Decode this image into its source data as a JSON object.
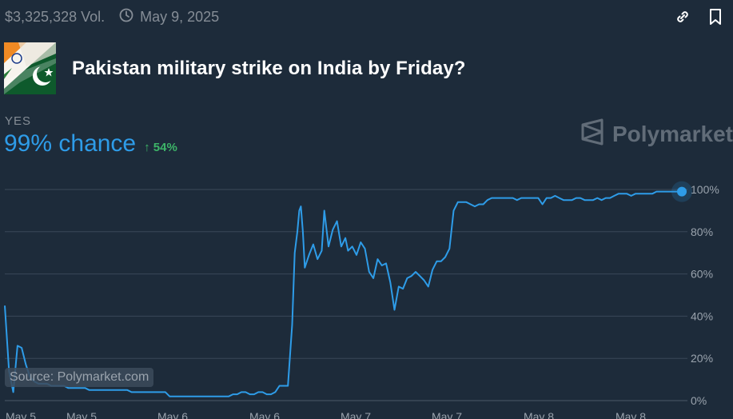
{
  "header": {
    "volume": "$3,325,328 Vol.",
    "date": "May 9, 2025",
    "icons": [
      "clock-icon",
      "link-icon",
      "bookmark-icon"
    ]
  },
  "market": {
    "title": "Pakistan military strike on India by Friday?",
    "image": "pakistan-india-flags",
    "outcome_label": "YES",
    "chance": "99% chance",
    "change": "54%",
    "change_icon": "arrow-up-icon"
  },
  "brand": {
    "name": "Polymarket",
    "icon": "polymarket-logo"
  },
  "source": "Source: Polymarket.com",
  "colors": {
    "background": "#1d2b3a",
    "line": "#2e9ce8",
    "positive": "#3db468",
    "muted": "#858d96"
  },
  "chart_data": {
    "type": "line",
    "x_ticks": [
      "May 5",
      "May 5",
      "May 6",
      "May 6",
      "May 7",
      "May 7",
      "May 8",
      "May 8"
    ],
    "y_ticks": [
      "100%",
      "80%",
      "60%",
      "40%",
      "20%",
      "0%"
    ],
    "ylim": [
      0,
      100
    ],
    "grid": true,
    "series": [
      {
        "values": [
          [
            0,
            45
          ],
          [
            1.3,
            14
          ],
          [
            2.6,
            4
          ],
          [
            3.9,
            26
          ],
          [
            5.2,
            25
          ],
          [
            6.5,
            17
          ],
          [
            7.8,
            11
          ],
          [
            9.1,
            9
          ],
          [
            10.4,
            8
          ],
          [
            11.7,
            8
          ],
          [
            13,
            8
          ],
          [
            14.3,
            7
          ],
          [
            15.6,
            7
          ],
          [
            16.9,
            7
          ],
          [
            18.2,
            7
          ],
          [
            19.5,
            6
          ],
          [
            20.8,
            6
          ],
          [
            22.1,
            6
          ],
          [
            23.4,
            6
          ],
          [
            24.7,
            6
          ],
          [
            26,
            5
          ],
          [
            27.3,
            5
          ],
          [
            28.6,
            5
          ],
          [
            29.9,
            5
          ],
          [
            31.2,
            5
          ],
          [
            32.5,
            5
          ],
          [
            33.8,
            5
          ],
          [
            35.1,
            5
          ],
          [
            36.4,
            5
          ],
          [
            37.7,
            5
          ],
          [
            39,
            4
          ],
          [
            40.3,
            4
          ],
          [
            41.6,
            4
          ],
          [
            42.9,
            4
          ],
          [
            44.2,
            4
          ],
          [
            45.5,
            4
          ],
          [
            46.8,
            4
          ],
          [
            48.1,
            4
          ],
          [
            49.4,
            4
          ],
          [
            50.7,
            2
          ],
          [
            52,
            2
          ],
          [
            53.3,
            2
          ],
          [
            54.6,
            2
          ],
          [
            55.9,
            2
          ],
          [
            57.2,
            2
          ],
          [
            58.5,
            2
          ],
          [
            59.8,
            2
          ],
          [
            61.1,
            2
          ],
          [
            62.4,
            2
          ],
          [
            63.7,
            2
          ],
          [
            65,
            2
          ],
          [
            66.3,
            2
          ],
          [
            67.6,
            2
          ],
          [
            68.9,
            2
          ],
          [
            70.2,
            3
          ],
          [
            71.5,
            3
          ],
          [
            72.8,
            4
          ],
          [
            74.1,
            4
          ],
          [
            75.4,
            3
          ],
          [
            76.7,
            3
          ],
          [
            78,
            4
          ],
          [
            79.3,
            4
          ],
          [
            80.6,
            3
          ],
          [
            81.9,
            3
          ],
          [
            83.2,
            4
          ],
          [
            84.5,
            7
          ],
          [
            85.8,
            7
          ],
          [
            87.1,
            7
          ],
          [
            88.4,
            36
          ],
          [
            89.2,
            70
          ],
          [
            90,
            80
          ],
          [
            90.6,
            90
          ],
          [
            91.1,
            92
          ],
          [
            91.7,
            80
          ],
          [
            92.3,
            63
          ],
          [
            93.6,
            69
          ],
          [
            94.9,
            74
          ],
          [
            96.2,
            67
          ],
          [
            97.5,
            71
          ],
          [
            98.3,
            90
          ],
          [
            99.6,
            73
          ],
          [
            100.9,
            81
          ],
          [
            102.2,
            85
          ],
          [
            103.5,
            73
          ],
          [
            104.8,
            77
          ],
          [
            105.6,
            71
          ],
          [
            106.9,
            73
          ],
          [
            108.2,
            69
          ],
          [
            109.5,
            75
          ],
          [
            110.8,
            72
          ],
          [
            112.1,
            61
          ],
          [
            113.4,
            58
          ],
          [
            114.7,
            67
          ],
          [
            116,
            64
          ],
          [
            117.3,
            65
          ],
          [
            118.6,
            56
          ],
          [
            119.9,
            43
          ],
          [
            121.2,
            54
          ],
          [
            122.5,
            53
          ],
          [
            123.8,
            58
          ],
          [
            125.1,
            59
          ],
          [
            126.4,
            61
          ],
          [
            127.7,
            59
          ],
          [
            129,
            57
          ],
          [
            130.3,
            54
          ],
          [
            131.6,
            62
          ],
          [
            132.9,
            66
          ],
          [
            134.2,
            66
          ],
          [
            135.5,
            68
          ],
          [
            136.8,
            72
          ],
          [
            138.1,
            90
          ],
          [
            139.4,
            94
          ],
          [
            140.7,
            94
          ],
          [
            142,
            94
          ],
          [
            143.3,
            93
          ],
          [
            144.6,
            92
          ],
          [
            145.9,
            93
          ],
          [
            147.2,
            93
          ],
          [
            148.5,
            95
          ],
          [
            149.8,
            96
          ],
          [
            151.1,
            96
          ],
          [
            152.4,
            96
          ],
          [
            153.7,
            96
          ],
          [
            155,
            96
          ],
          [
            156.3,
            96
          ],
          [
            157.6,
            95
          ],
          [
            158.9,
            96
          ],
          [
            160.2,
            96
          ],
          [
            161.5,
            96
          ],
          [
            162.8,
            96
          ],
          [
            164.1,
            96
          ],
          [
            165.4,
            93
          ],
          [
            166.7,
            96
          ],
          [
            168,
            96
          ],
          [
            169.3,
            97
          ],
          [
            170.6,
            96
          ],
          [
            171.9,
            95
          ],
          [
            173.2,
            95
          ],
          [
            174.5,
            95
          ],
          [
            175.8,
            96
          ],
          [
            177.1,
            96
          ],
          [
            178.4,
            95
          ],
          [
            179.7,
            95
          ],
          [
            181,
            95
          ],
          [
            182.3,
            96
          ],
          [
            183.6,
            95
          ],
          [
            184.9,
            96
          ],
          [
            186.2,
            96
          ],
          [
            187.5,
            97
          ],
          [
            188.8,
            98
          ],
          [
            190.1,
            98
          ],
          [
            191.4,
            98
          ],
          [
            192.7,
            97
          ],
          [
            194,
            98
          ],
          [
            195.3,
            98
          ],
          [
            196.6,
            98
          ],
          [
            197.9,
            98
          ],
          [
            199.2,
            98
          ],
          [
            200.5,
            99
          ],
          [
            201.8,
            99
          ],
          [
            203.1,
            99
          ],
          [
            204.4,
            99
          ],
          [
            205.7,
            99
          ],
          [
            207,
            99
          ],
          [
            208.3,
            99
          ]
        ]
      }
    ]
  }
}
